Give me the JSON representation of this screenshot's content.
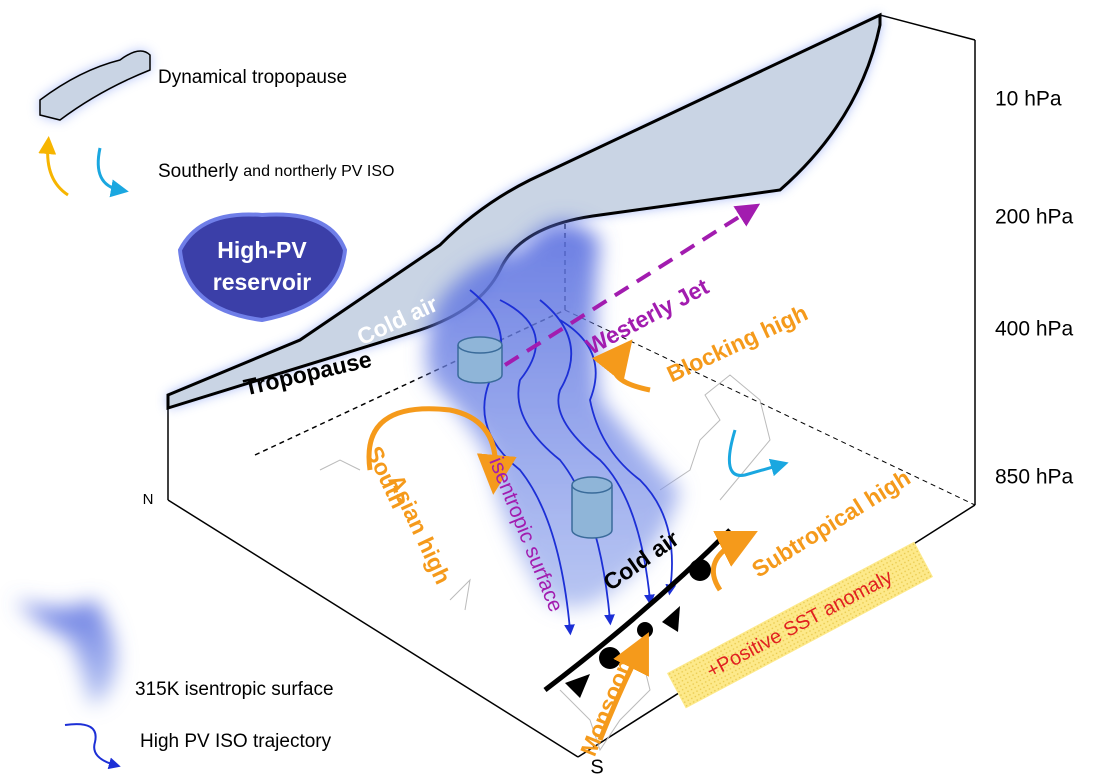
{
  "legend": {
    "dynamical_tropopause": "Dynamical tropopause",
    "pv_iso_southerly": "Southerly",
    "pv_iso_northerly": "and northerly PV ISO",
    "isentropic_surface": "315K isentropic surface",
    "trajectory": "High PV ISO trajectory"
  },
  "pressure_levels": [
    "10 hPa",
    "200 hPa",
    "400 hPa",
    "850 hPa"
  ],
  "labels": {
    "reservoir_1": "High-PV",
    "reservoir_2": "reservoir",
    "cold_air_upper": "Cold air",
    "westerly_jet": "Westerly Jet",
    "blocking_high": "Blocking high",
    "tropopause": "Tropopause",
    "isentropic": "isentropic surface",
    "south_asian_1": "South",
    "south_asian_2": "Asian high",
    "cold_air_lower": "Cold air",
    "subtropical_high": "Subtropical high",
    "sst_anomaly": "+Positive SST anomaly",
    "monsoon": "Monsoon"
  },
  "directions": {
    "north": "N",
    "south": "S"
  }
}
